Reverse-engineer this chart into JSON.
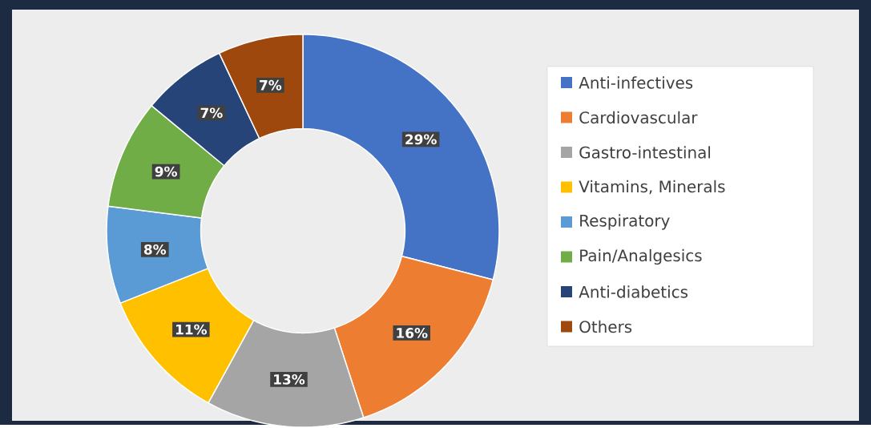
{
  "chart_data": {
    "type": "donut",
    "categories": [
      "Anti-infectives",
      "Cardiovascular",
      "Gastro-intestinal",
      "Vitamins, Minerals",
      "Respiratory",
      "Pain/Analgesics",
      "Anti-diabetics",
      "Others"
    ],
    "values": [
      29,
      16,
      13,
      11,
      8,
      9,
      7,
      7
    ],
    "colors": [
      "#4472c4",
      "#ed7d31",
      "#a5a5a5",
      "#ffc000",
      "#5b9bd5",
      "#70ad47",
      "#264478",
      "#9e480e"
    ],
    "value_labels": [
      "29%",
      "16%",
      "13%",
      "11%",
      "8%",
      "9%",
      "7%",
      "7%"
    ],
    "legend": "right"
  }
}
